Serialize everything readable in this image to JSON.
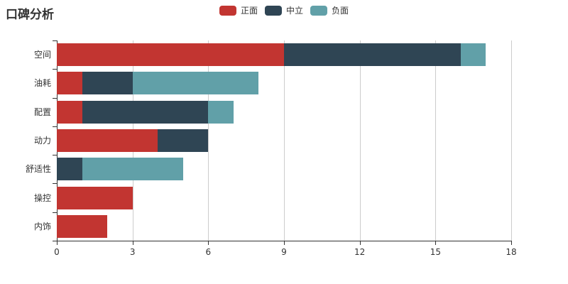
{
  "title": "口碑分析",
  "colors": {
    "positive": "#c23531",
    "neutral": "#2f4554",
    "negative": "#61a0a8",
    "axis": "#333333",
    "grid": "#cccccc",
    "label": "#333333"
  },
  "legend": {
    "items": [
      {
        "label": "正面",
        "color": "#c23531"
      },
      {
        "label": "中立",
        "color": "#2f4554"
      },
      {
        "label": "负面",
        "color": "#61a0a8"
      }
    ]
  },
  "chart_data": {
    "type": "bar",
    "orientation": "horizontal",
    "stacked": true,
    "title": "口碑分析",
    "categories": [
      "空间",
      "油耗",
      "配置",
      "动力",
      "舒适性",
      "操控",
      "内饰"
    ],
    "series": [
      {
        "name": "正面",
        "color": "#c23531",
        "values": [
          9,
          1,
          1,
          4,
          0,
          3,
          2
        ]
      },
      {
        "name": "中立",
        "color": "#2f4554",
        "values": [
          7,
          2,
          5,
          2,
          1,
          0,
          0
        ]
      },
      {
        "name": "负面",
        "color": "#61a0a8",
        "values": [
          1,
          5,
          1,
          0,
          4,
          0,
          0
        ]
      }
    ],
    "totals": [
      17,
      8,
      7,
      6,
      5,
      3,
      2
    ],
    "xlim": [
      0,
      18
    ],
    "x_ticks": [
      0,
      3,
      6,
      9,
      12,
      15,
      18
    ],
    "xlabel": "",
    "ylabel": "",
    "grid": true,
    "legend_position": "top-center"
  }
}
